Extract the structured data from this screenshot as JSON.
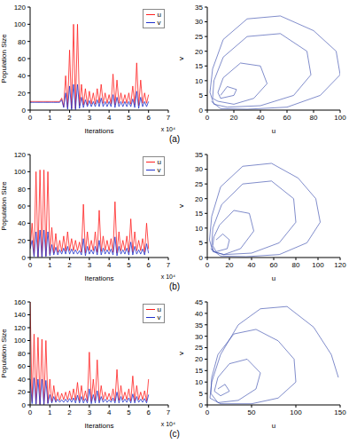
{
  "chart_data": [
    {
      "type": "line",
      "caption": "(a)",
      "xlabel": "Iterations",
      "ylabel": "Population Size",
      "annotation": "x 10⁴",
      "legend": "upper right",
      "xlim": [
        0,
        7
      ],
      "xticks": [
        0,
        1,
        2,
        3,
        4,
        5,
        6,
        7
      ],
      "ylim": [
        0,
        120
      ],
      "yticks": [
        0,
        20,
        40,
        60,
        80,
        100,
        120
      ],
      "x": [
        0,
        0.1,
        0.2,
        0.3,
        0.4,
        0.5,
        0.6,
        0.7,
        0.8,
        0.9,
        1,
        1.1,
        1.2,
        1.3,
        1.4,
        1.5,
        1.6,
        1.7,
        1.8,
        1.9,
        2,
        2.1,
        2.2,
        2.3,
        2.4,
        2.5,
        2.6,
        2.7,
        2.8,
        2.9,
        3,
        3.1,
        3.2,
        3.3,
        3.4,
        3.5,
        3.6,
        3.7,
        3.8,
        3.9,
        4,
        4.1,
        4.2,
        4.3,
        4.4,
        4.5,
        4.6,
        4.7,
        4.8,
        4.9,
        5,
        5.1,
        5.2,
        5.3,
        5.4,
        5.5,
        5.6,
        5.7,
        5.8,
        5.9,
        6
      ],
      "series": [
        {
          "name": "u",
          "color": "#ff2020",
          "values": [
            10,
            10,
            10,
            10,
            10,
            10,
            10,
            10,
            10,
            10,
            10,
            10,
            10,
            10,
            10,
            10,
            14,
            4,
            40,
            3,
            70,
            2,
            100,
            2,
            100,
            5,
            30,
            6,
            25,
            6,
            22,
            7,
            20,
            7,
            25,
            8,
            30,
            8,
            20,
            8,
            18,
            7,
            42,
            6,
            35,
            8,
            20,
            8,
            18,
            8,
            20,
            7,
            28,
            6,
            55,
            5,
            35,
            8,
            20,
            8,
            18
          ]
        },
        {
          "name": "v",
          "color": "#2233cc",
          "values": [
            9,
            9,
            9,
            9,
            9,
            9,
            9,
            9,
            9,
            9,
            9,
            9,
            9,
            9,
            9,
            9,
            12,
            3,
            20,
            1,
            28,
            0.5,
            30,
            0.5,
            30,
            2,
            15,
            3,
            12,
            4,
            11,
            4,
            10,
            4,
            12,
            4,
            14,
            4,
            10,
            4,
            10,
            4,
            18,
            3,
            15,
            4,
            10,
            4,
            10,
            4,
            10,
            4,
            13,
            3,
            22,
            2,
            15,
            4,
            10,
            4,
            10
          ]
        }
      ]
    },
    {
      "type": "line",
      "xlabel": "u",
      "ylabel": "v",
      "color": "#2b3fa8",
      "xlim": [
        0,
        100
      ],
      "xticks": [
        0,
        20,
        40,
        60,
        80,
        100
      ],
      "ylim": [
        0,
        35
      ],
      "yticks": [
        0,
        5,
        10,
        15,
        20,
        25,
        30,
        35
      ],
      "x": [
        3,
        10,
        30,
        60,
        85,
        100,
        97,
        80,
        55,
        30,
        12,
        4,
        2,
        5,
        15,
        40,
        65,
        78,
        75,
        55,
        30,
        12,
        5,
        4,
        8,
        20,
        35,
        45,
        40,
        25,
        12,
        8,
        10,
        20,
        22,
        15,
        10
      ],
      "values": [
        3,
        0.5,
        0.3,
        1,
        5,
        12,
        20,
        27,
        32,
        31,
        24,
        14,
        6,
        2,
        1,
        1.5,
        5,
        12,
        20,
        26,
        25,
        18,
        10,
        4,
        3,
        2,
        4,
        9,
        15,
        16,
        11,
        6,
        4,
        5,
        7,
        8,
        5
      ]
    },
    {
      "type": "line",
      "caption": "(b)",
      "xlabel": "Iterations",
      "ylabel": "Population Size",
      "annotation": "x 10⁴",
      "legend": "upper right",
      "xlim": [
        0,
        7
      ],
      "xticks": [
        0,
        1,
        2,
        3,
        4,
        5,
        6,
        7
      ],
      "ylim": [
        0,
        120
      ],
      "yticks": [
        0,
        20,
        40,
        60,
        80,
        100,
        120
      ],
      "x": [
        0,
        0.1,
        0.2,
        0.3,
        0.4,
        0.5,
        0.6,
        0.7,
        0.8,
        0.9,
        1,
        1.1,
        1.2,
        1.3,
        1.4,
        1.5,
        1.6,
        1.7,
        1.8,
        1.9,
        2,
        2.1,
        2.2,
        2.3,
        2.4,
        2.5,
        2.6,
        2.7,
        2.8,
        2.9,
        3,
        3.1,
        3.2,
        3.3,
        3.4,
        3.5,
        3.6,
        3.7,
        3.8,
        3.9,
        4,
        4.1,
        4.2,
        4.3,
        4.4,
        4.5,
        4.6,
        4.7,
        4.8,
        4.9,
        5,
        5.1,
        5.2,
        5.3,
        5.4,
        5.5,
        5.6,
        5.7,
        5.8,
        5.9,
        6
      ],
      "series": [
        {
          "name": "u",
          "color": "#ff2020",
          "values": [
            10,
            40,
            2,
            100,
            1,
            102,
            1,
            102,
            2,
            100,
            4,
            35,
            5,
            28,
            6,
            20,
            7,
            25,
            7,
            30,
            8,
            22,
            8,
            20,
            8,
            18,
            6,
            62,
            5,
            30,
            8,
            20,
            8,
            30,
            6,
            55,
            7,
            25,
            8,
            20,
            8,
            22,
            6,
            65,
            5,
            30,
            8,
            20,
            8,
            25,
            6,
            45,
            6,
            30,
            8,
            20,
            8,
            22,
            6,
            40,
            10
          ]
        },
        {
          "name": "v",
          "color": "#2233cc",
          "values": [
            10,
            20,
            1,
            30,
            0.5,
            32,
            0.5,
            32,
            1,
            30,
            2,
            15,
            3,
            12,
            3,
            9,
            4,
            11,
            4,
            13,
            4,
            10,
            4,
            9,
            4,
            8,
            3,
            22,
            2,
            13,
            4,
            9,
            4,
            13,
            3,
            20,
            3,
            11,
            4,
            9,
            4,
            10,
            3,
            24,
            2,
            13,
            4,
            9,
            4,
            11,
            3,
            18,
            3,
            13,
            4,
            9,
            4,
            10,
            3,
            16,
            5
          ]
        }
      ]
    },
    {
      "type": "line",
      "xlabel": "u",
      "ylabel": "v",
      "color": "#2b3fa8",
      "xlim": [
        0,
        120
      ],
      "xticks": [
        0,
        20,
        40,
        60,
        80,
        100,
        120
      ],
      "ylim": [
        0,
        35
      ],
      "yticks": [
        0,
        5,
        10,
        15,
        20,
        25,
        30,
        35
      ],
      "x": [
        3,
        12,
        35,
        65,
        90,
        102,
        98,
        82,
        58,
        32,
        12,
        4,
        2,
        5,
        15,
        40,
        65,
        80,
        78,
        58,
        32,
        13,
        5,
        4,
        6,
        15,
        30,
        42,
        38,
        24,
        11,
        6,
        5,
        8,
        18,
        20,
        14,
        8
      ],
      "values": [
        3,
        0.5,
        0.3,
        1,
        5,
        12,
        20,
        27,
        32,
        31,
        24,
        14,
        6,
        2,
        1,
        1.5,
        5,
        12,
        20,
        26,
        25,
        18,
        10,
        4,
        2,
        1,
        3,
        9,
        15,
        16,
        11,
        7,
        4,
        2,
        3,
        6,
        8,
        6
      ]
    },
    {
      "type": "line",
      "caption": "(c)",
      "xlabel": "Iterations",
      "ylabel": "Population Size",
      "annotation": "x 10⁴",
      "legend": "upper right",
      "xlim": [
        0,
        7
      ],
      "xticks": [
        0,
        1,
        2,
        3,
        4,
        5,
        6,
        7
      ],
      "ylim": [
        0,
        160
      ],
      "yticks": [
        0,
        20,
        40,
        60,
        80,
        100,
        120,
        140,
        160
      ],
      "x": [
        0,
        0.1,
        0.2,
        0.3,
        0.4,
        0.5,
        0.6,
        0.7,
        0.8,
        0.9,
        1,
        1.1,
        1.2,
        1.3,
        1.4,
        1.5,
        1.6,
        1.7,
        1.8,
        1.9,
        2,
        2.1,
        2.2,
        2.3,
        2.4,
        2.5,
        2.6,
        2.7,
        2.8,
        2.9,
        3,
        3.1,
        3.2,
        3.3,
        3.4,
        3.5,
        3.6,
        3.7,
        3.8,
        3.9,
        4,
        4.1,
        4.2,
        4.3,
        4.4,
        4.5,
        4.6,
        4.7,
        4.8,
        4.9,
        5,
        5.1,
        5.2,
        5.3,
        5.4,
        5.5,
        5.6,
        5.7,
        5.8,
        5.9,
        6
      ],
      "series": [
        {
          "name": "u",
          "color": "#ff2020",
          "values": [
            160,
            5,
            110,
            2,
            105,
            1,
            102,
            1,
            100,
            3,
            40,
            4,
            30,
            6,
            20,
            7,
            18,
            8,
            20,
            8,
            22,
            8,
            25,
            7,
            35,
            6,
            30,
            7,
            22,
            6,
            82,
            5,
            40,
            6,
            70,
            6,
            30,
            8,
            20,
            8,
            18,
            7,
            25,
            6,
            55,
            7,
            30,
            8,
            20,
            8,
            25,
            6,
            45,
            6,
            30,
            8,
            20,
            8,
            22,
            6,
            40
          ]
        },
        {
          "name": "v",
          "color": "#2233cc",
          "values": [
            40,
            2,
            42,
            1,
            40,
            0.5,
            40,
            0.5,
            38,
            2,
            16,
            3,
            13,
            4,
            9,
            4,
            8,
            4,
            9,
            4,
            10,
            4,
            11,
            3,
            15,
            3,
            13,
            3,
            10,
            3,
            25,
            2,
            16,
            3,
            22,
            3,
            13,
            4,
            9,
            4,
            8,
            4,
            11,
            3,
            20,
            3,
            13,
            4,
            9,
            4,
            11,
            3,
            17,
            3,
            13,
            4,
            9,
            4,
            10,
            3,
            16
          ]
        }
      ]
    },
    {
      "type": "line",
      "xlabel": "u",
      "ylabel": "v",
      "color": "#2b3fa8",
      "xlim": [
        0,
        150
      ],
      "xticks": [
        0,
        50,
        100,
        150
      ],
      "ylim": [
        0,
        45
      ],
      "yticks": [
        0,
        5,
        10,
        15,
        20,
        25,
        30,
        35,
        40,
        45
      ],
      "x": [
        148,
        140,
        120,
        90,
        60,
        35,
        15,
        5,
        3,
        15,
        50,
        80,
        100,
        98,
        80,
        55,
        30,
        12,
        5,
        4,
        12,
        35,
        55,
        60,
        45,
        25,
        12,
        8,
        15,
        25,
        20,
        12
      ],
      "values": [
        12,
        22,
        34,
        43,
        42,
        35,
        22,
        10,
        3,
        0.5,
        0.5,
        3,
        10,
        20,
        28,
        33,
        31,
        22,
        12,
        5,
        1,
        2,
        7,
        14,
        20,
        18,
        12,
        6,
        4,
        6,
        9,
        7
      ]
    }
  ]
}
